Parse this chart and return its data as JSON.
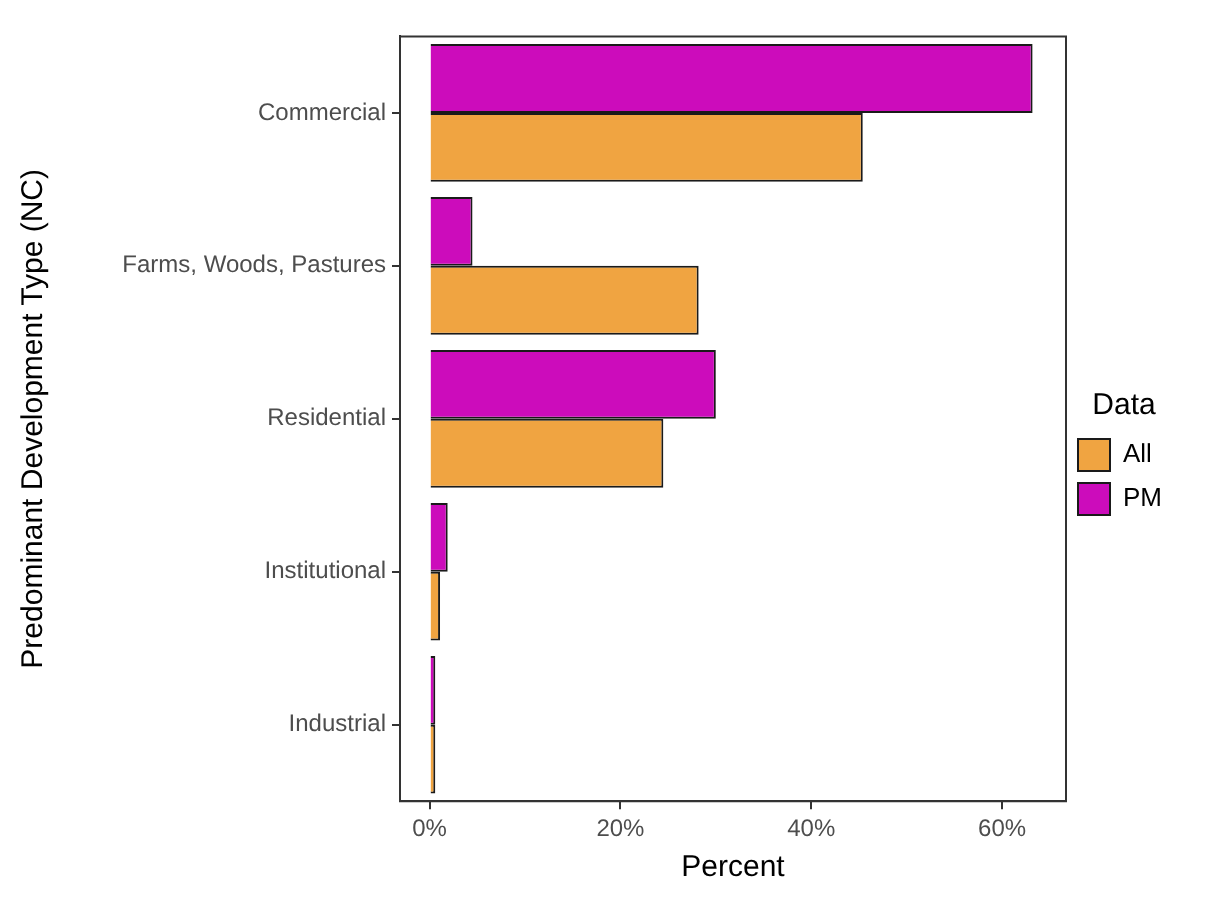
{
  "chart_data": {
    "type": "bar",
    "orientation": "horizontal",
    "xlabel": "Percent",
    "ylabel": "Predominant Development Type (NC)",
    "legend_title": "Data",
    "legend": "right",
    "categories": [
      "Commercial",
      "Farms, Woods, Pastures",
      "Residential",
      "Institutional",
      "Industrial"
    ],
    "series": [
      {
        "name": "All",
        "color": "#f0a441",
        "values": [
          45.4,
          28.2,
          24.5,
          1.1,
          0.6
        ]
      },
      {
        "name": "PM",
        "color": "#cc0cbb",
        "values": [
          63.2,
          4.5,
          30.0,
          1.9,
          0.6
        ]
      }
    ],
    "xlim": [
      -3.1,
      66.7
    ],
    "xticks": [
      {
        "value": 0,
        "label": "0%"
      },
      {
        "value": 20,
        "label": "20%"
      },
      {
        "value": 40,
        "label": "40%"
      },
      {
        "value": 60,
        "label": "60%"
      }
    ],
    "grid": false
  }
}
